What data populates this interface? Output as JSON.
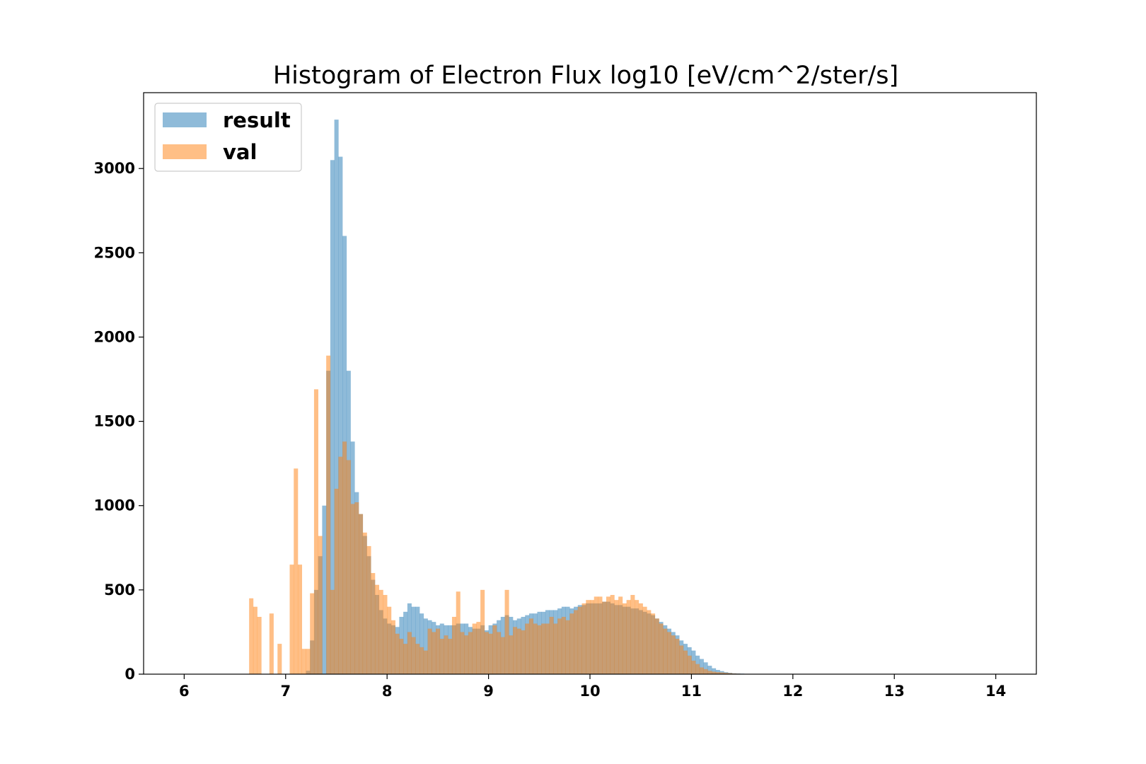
{
  "chart_data": {
    "type": "bar",
    "title": "Histogram of Electron Flux log10 [eV/cm^2/ster/s]",
    "xlabel": "",
    "ylabel": "",
    "xlim": [
      5.6,
      14.4
    ],
    "ylim": [
      0,
      3450
    ],
    "x_ticks": [
      6,
      7,
      8,
      9,
      10,
      11,
      12,
      13,
      14
    ],
    "y_ticks": [
      0,
      500,
      1000,
      1500,
      2000,
      2500,
      3000
    ],
    "grid": false,
    "legend_position": "upper-left",
    "bin_start": 6.0,
    "bin_width": 0.04,
    "series": [
      {
        "name": "result",
        "color": "#1f77b4",
        "alpha": 0.5,
        "values": [
          0,
          0,
          0,
          0,
          0,
          0,
          0,
          0,
          0,
          0,
          0,
          0,
          0,
          0,
          0,
          0,
          0,
          0,
          0,
          0,
          0,
          0,
          0,
          0,
          0,
          0,
          0,
          0,
          0,
          0,
          20,
          200,
          500,
          700,
          1000,
          1800,
          3050,
          3290,
          3070,
          2600,
          1800,
          1380,
          1080,
          950,
          820,
          700,
          560,
          470,
          380,
          330,
          300,
          290,
          280,
          340,
          370,
          420,
          400,
          400,
          360,
          330,
          320,
          310,
          290,
          300,
          290,
          290,
          290,
          300,
          300,
          300,
          280,
          270,
          270,
          290,
          260,
          290,
          300,
          320,
          340,
          350,
          340,
          320,
          330,
          340,
          350,
          360,
          360,
          370,
          370,
          380,
          380,
          380,
          390,
          400,
          400,
          390,
          400,
          410,
          410,
          420,
          420,
          420,
          420,
          430,
          430,
          420,
          410,
          410,
          400,
          400,
          390,
          390,
          380,
          370,
          360,
          350,
          330,
          310,
          290,
          270,
          250,
          230,
          200,
          180,
          160,
          140,
          110,
          90,
          70,
          50,
          35,
          25,
          18,
          12,
          8,
          5,
          4,
          3,
          2,
          1,
          1,
          1,
          0,
          0,
          0,
          0,
          0,
          0,
          0,
          0,
          0,
          0,
          0,
          0,
          0,
          0,
          0,
          0,
          0,
          0,
          0,
          0,
          0,
          0,
          0,
          0,
          0,
          0,
          0,
          0,
          0,
          0,
          0,
          0,
          0,
          0,
          0,
          0,
          0,
          0,
          0,
          0,
          0,
          0,
          0,
          0,
          0,
          0,
          0,
          0,
          0,
          0,
          0,
          0,
          0,
          0,
          0,
          0,
          0,
          0,
          0,
          0,
          0,
          0,
          0,
          0,
          0,
          0,
          0,
          0
        ]
      },
      {
        "name": "val",
        "color": "#ff7f0e",
        "alpha": 0.5,
        "values": [
          0,
          0,
          0,
          0,
          0,
          0,
          0,
          0,
          0,
          0,
          0,
          0,
          0,
          0,
          0,
          0,
          450,
          400,
          340,
          0,
          0,
          360,
          0,
          180,
          0,
          0,
          650,
          1220,
          650,
          150,
          150,
          480,
          1690,
          820,
          0,
          1890,
          500,
          1100,
          1290,
          1380,
          1270,
          1010,
          1020,
          950,
          840,
          760,
          600,
          530,
          500,
          470,
          400,
          320,
          240,
          210,
          180,
          250,
          220,
          180,
          160,
          140,
          270,
          250,
          270,
          210,
          230,
          210,
          340,
          490,
          250,
          230,
          250,
          300,
          310,
          500,
          250,
          240,
          290,
          250,
          220,
          500,
          230,
          280,
          270,
          260,
          300,
          330,
          300,
          290,
          300,
          300,
          340,
          300,
          330,
          340,
          320,
          360,
          380,
          400,
          420,
          440,
          440,
          460,
          460,
          430,
          460,
          470,
          440,
          460,
          420,
          440,
          470,
          440,
          420,
          400,
          380,
          360,
          330,
          300,
          270,
          250,
          230,
          210,
          170,
          140,
          110,
          80,
          60,
          40,
          30,
          20,
          15,
          12,
          10,
          8,
          6,
          4,
          3,
          2,
          2,
          1,
          1,
          1,
          0,
          0,
          0,
          0,
          0,
          0,
          0,
          0,
          0,
          0,
          0,
          0,
          0,
          0,
          0,
          0,
          0,
          0,
          0,
          0,
          0,
          0,
          0,
          0,
          0,
          0,
          0,
          0,
          0,
          0,
          0,
          0,
          0,
          0,
          0,
          0,
          0,
          0,
          0,
          0,
          0,
          0,
          0,
          0,
          0,
          0,
          0,
          0
        ]
      }
    ]
  }
}
